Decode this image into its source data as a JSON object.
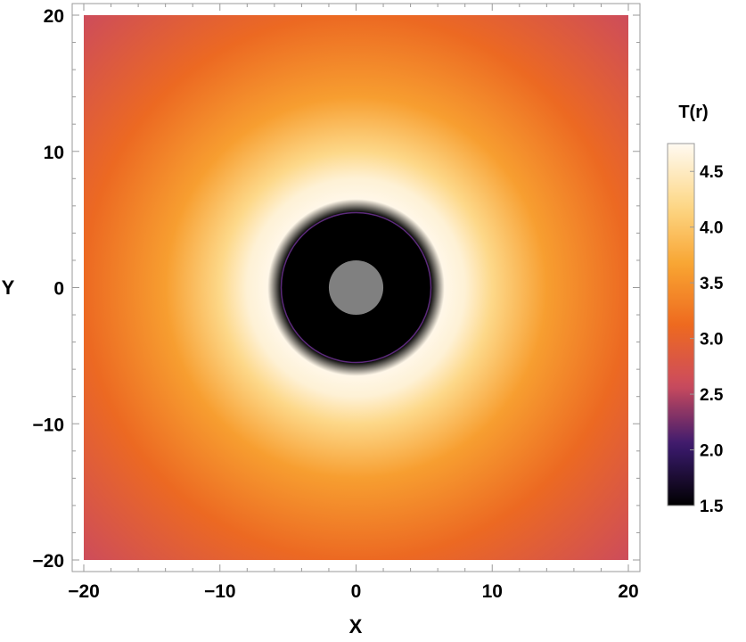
{
  "chart_data": {
    "type": "heatmap",
    "title": "",
    "xlabel": "X",
    "ylabel": "Y",
    "xlim": [
      -20,
      20
    ],
    "ylim": [
      -20,
      20
    ],
    "x_ticks": [
      -20,
      -10,
      0,
      10,
      20
    ],
    "y_ticks": [
      -20,
      -10,
      0,
      10,
      20
    ],
    "x_tick_labels": [
      "−20",
      "−10",
      "0",
      "10",
      "20"
    ],
    "y_tick_labels": [
      "−20",
      "−10",
      "0",
      "10",
      "20"
    ],
    "colorbar": {
      "title": "T(r)",
      "range": [
        1.5,
        4.75
      ],
      "ticks": [
        1.5,
        2.0,
        2.5,
        3.0,
        3.5,
        4.0,
        4.5
      ],
      "tick_labels": [
        "1.5",
        "2.0",
        "2.5",
        "3.0",
        "3.5",
        "4.0",
        "4.5"
      ],
      "colors": [
        "#000000",
        "#3b1a6e",
        "#cc4b5d",
        "#ee6a1f",
        "#f8a532",
        "#fdd98a",
        "#fffaf2"
      ]
    },
    "field": {
      "description_of_trend": "radially symmetric; T peaks near r ≈ 6.5 and decreases outward",
      "samples": [
        {
          "r": 5.5,
          "T": 1.5
        },
        {
          "r": 6.5,
          "T": 4.7
        },
        {
          "r": 8,
          "T": 4.6
        },
        {
          "r": 10,
          "T": 4.2
        },
        {
          "r": 14,
          "T": 3.6
        },
        {
          "r": 20,
          "T": 3.1
        },
        {
          "r": 28.3,
          "T": 2.6
        }
      ]
    },
    "black_disk_radius": 5.5,
    "gray_disk_radius": 2,
    "gray_disk_color": "#808080"
  }
}
